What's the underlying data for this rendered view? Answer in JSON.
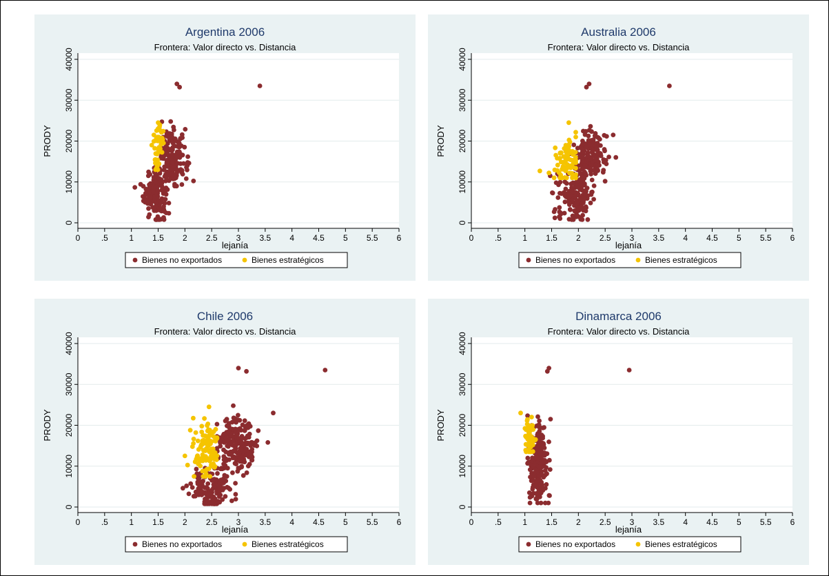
{
  "colors": {
    "no_exportados": "#8b2c2f",
    "estrategicos": "#f5c400",
    "panel_bg": "#eaf2f3",
    "title": "#1f3a6b"
  },
  "chart_data": [
    {
      "type": "scatter",
      "title": "Argentina 2006",
      "subtitle": "Frontera: Valor directo vs. Distancia",
      "xlabel": "lejanía",
      "ylabel": "PRODY",
      "xlim": [
        0,
        6
      ],
      "ylim": [
        0,
        40000
      ],
      "xticks": [
        "0",
        ".5",
        "1",
        "1.5",
        "2",
        "2.5",
        "3",
        "3.5",
        "4",
        "4.5",
        "5",
        "5.5",
        "6"
      ],
      "yticks": [
        "0",
        "10000",
        "20000",
        "30000",
        "40000"
      ],
      "grid": true,
      "legend_position": "bottom",
      "series": [
        {
          "name": "Bienes no exportados",
          "color": "#8b2c2f",
          "outliers": [
            [
              1.85,
              34000
            ],
            [
              1.9,
              33200
            ],
            [
              3.4,
              33500
            ]
          ],
          "clusters": [
            {
              "cx": 1.45,
              "sx": 0.11,
              "cy": 7500,
              "sy": 3200,
              "n": 170,
              "xmin": 1.05,
              "xmax": 1.7,
              "ymin": 800,
              "ymax": 14000
            },
            {
              "cx": 1.8,
              "sx": 0.12,
              "cy": 16000,
              "sy": 3200,
              "n": 170,
              "xmin": 1.55,
              "xmax": 2.2,
              "ymin": 9000,
              "ymax": 24800
            }
          ]
        },
        {
          "name": "Bienes estratégicos",
          "color": "#f5c400",
          "outliers": [
            [
              1.5,
              24500
            ],
            [
              1.42,
              21500
            ],
            [
              1.38,
              19000
            ]
          ],
          "clusters": [
            {
              "cx": 1.5,
              "sx": 0.04,
              "cy": 18000,
              "sy": 2800,
              "n": 50,
              "xmin": 1.38,
              "xmax": 1.6,
              "ymin": 13000,
              "ymax": 24500
            }
          ]
        }
      ]
    },
    {
      "type": "scatter",
      "title": "Australia 2006",
      "subtitle": "Frontera: Valor directo vs. Distancia",
      "xlabel": "lejanía",
      "ylabel": "PRODY",
      "xlim": [
        0,
        6
      ],
      "ylim": [
        0,
        40000
      ],
      "xticks": [
        "0",
        ".5",
        "1",
        "1.5",
        "2",
        "2.5",
        "3",
        "3.5",
        "4",
        "4.5",
        "5",
        "5.5",
        "6"
      ],
      "yticks": [
        "0",
        "10000",
        "20000",
        "30000",
        "40000"
      ],
      "grid": true,
      "legend_position": "bottom",
      "series": [
        {
          "name": "Bienes no exportados",
          "color": "#8b2c2f",
          "outliers": [
            [
              2.2,
              34000
            ],
            [
              2.15,
              33200
            ],
            [
              3.7,
              33500
            ],
            [
              2.7,
              16000
            ]
          ],
          "clusters": [
            {
              "cx": 1.95,
              "sx": 0.18,
              "cy": 6500,
              "sy": 2800,
              "n": 160,
              "xmin": 1.4,
              "xmax": 2.4,
              "ymin": 800,
              "ymax": 12000
            },
            {
              "cx": 2.2,
              "sx": 0.15,
              "cy": 16500,
              "sy": 3000,
              "n": 170,
              "xmin": 1.85,
              "xmax": 2.65,
              "ymin": 10000,
              "ymax": 24800
            }
          ]
        },
        {
          "name": "Bienes estratégicos",
          "color": "#f5c400",
          "outliers": [
            [
              1.28,
              12700
            ],
            [
              1.82,
              24500
            ],
            [
              1.45,
              12200
            ]
          ],
          "clusters": [
            {
              "cx": 1.78,
              "sx": 0.12,
              "cy": 15500,
              "sy": 3000,
              "n": 80,
              "xmin": 1.4,
              "xmax": 1.95,
              "ymin": 11000,
              "ymax": 22500
            }
          ]
        }
      ]
    },
    {
      "type": "scatter",
      "title": "Chile 2006",
      "subtitle": "Frontera: Valor directo vs. Distancia",
      "xlabel": "lejanía",
      "ylabel": "PRODY",
      "xlim": [
        0,
        6
      ],
      "ylim": [
        0,
        40000
      ],
      "xticks": [
        "0",
        ".5",
        "1",
        "1.5",
        "2",
        "2.5",
        "3",
        "3.5",
        "4",
        "4.5",
        "5",
        "5.5",
        "6"
      ],
      "yticks": [
        "0",
        "10000",
        "20000",
        "30000",
        "40000"
      ],
      "grid": true,
      "legend_position": "bottom",
      "series": [
        {
          "name": "Bienes no exportados",
          "color": "#8b2c2f",
          "outliers": [
            [
              3.0,
              34000
            ],
            [
              3.15,
              33200
            ],
            [
              4.62,
              33500
            ],
            [
              3.65,
              23000
            ],
            [
              3.55,
              15800
            ]
          ],
          "clusters": [
            {
              "cx": 2.5,
              "sx": 0.2,
              "cy": 4500,
              "sy": 2600,
              "n": 150,
              "xmin": 1.95,
              "xmax": 2.95,
              "ymin": 800,
              "ymax": 9500
            },
            {
              "cx": 3.0,
              "sx": 0.18,
              "cy": 15500,
              "sy": 3500,
              "n": 200,
              "xmin": 2.6,
              "xmax": 3.5,
              "ymin": 7500,
              "ymax": 24800
            }
          ]
        },
        {
          "name": "Bienes estratégicos",
          "color": "#f5c400",
          "outliers": [
            [
              2.45,
              24500
            ],
            [
              2.0,
              12500
            ],
            [
              2.1,
              18800
            ]
          ],
          "clusters": [
            {
              "cx": 2.4,
              "sx": 0.12,
              "cy": 13500,
              "sy": 3500,
              "n": 110,
              "xmin": 2.05,
              "xmax": 2.6,
              "ymin": 7500,
              "ymax": 23000
            }
          ]
        }
      ]
    },
    {
      "type": "scatter",
      "title": "Dinamarca 2006",
      "subtitle": "Frontera: Valor directo vs. Distancia",
      "xlabel": "lejanía",
      "ylabel": "PRODY",
      "xlim": [
        0,
        6
      ],
      "ylim": [
        0,
        40000
      ],
      "xticks": [
        "0",
        ".5",
        "1",
        "1.5",
        "2",
        "2.5",
        "3",
        "3.5",
        "4",
        "4.5",
        "5",
        "5.5",
        "6"
      ],
      "yticks": [
        "0",
        "10000",
        "20000",
        "30000",
        "40000"
      ],
      "grid": true,
      "legend_position": "bottom",
      "series": [
        {
          "name": "Bienes no exportados",
          "color": "#8b2c2f",
          "outliers": [
            [
              1.45,
              34000
            ],
            [
              1.42,
              33200
            ],
            [
              2.95,
              33500
            ],
            [
              1.48,
              21500
            ]
          ],
          "clusters": [
            {
              "cx": 1.25,
              "sx": 0.09,
              "cy": 10500,
              "sy": 5500,
              "n": 200,
              "xmin": 1.05,
              "xmax": 1.5,
              "ymin": 1000,
              "ymax": 24500
            }
          ]
        },
        {
          "name": "Bienes estratégicos",
          "color": "#f5c400",
          "outliers": [
            [
              0.92,
              23000
            ]
          ],
          "clusters": [
            {
              "cx": 1.08,
              "sx": 0.05,
              "cy": 17000,
              "sy": 2500,
              "n": 55,
              "xmin": 0.98,
              "xmax": 1.2,
              "ymin": 13500,
              "ymax": 22000
            }
          ]
        }
      ]
    }
  ]
}
